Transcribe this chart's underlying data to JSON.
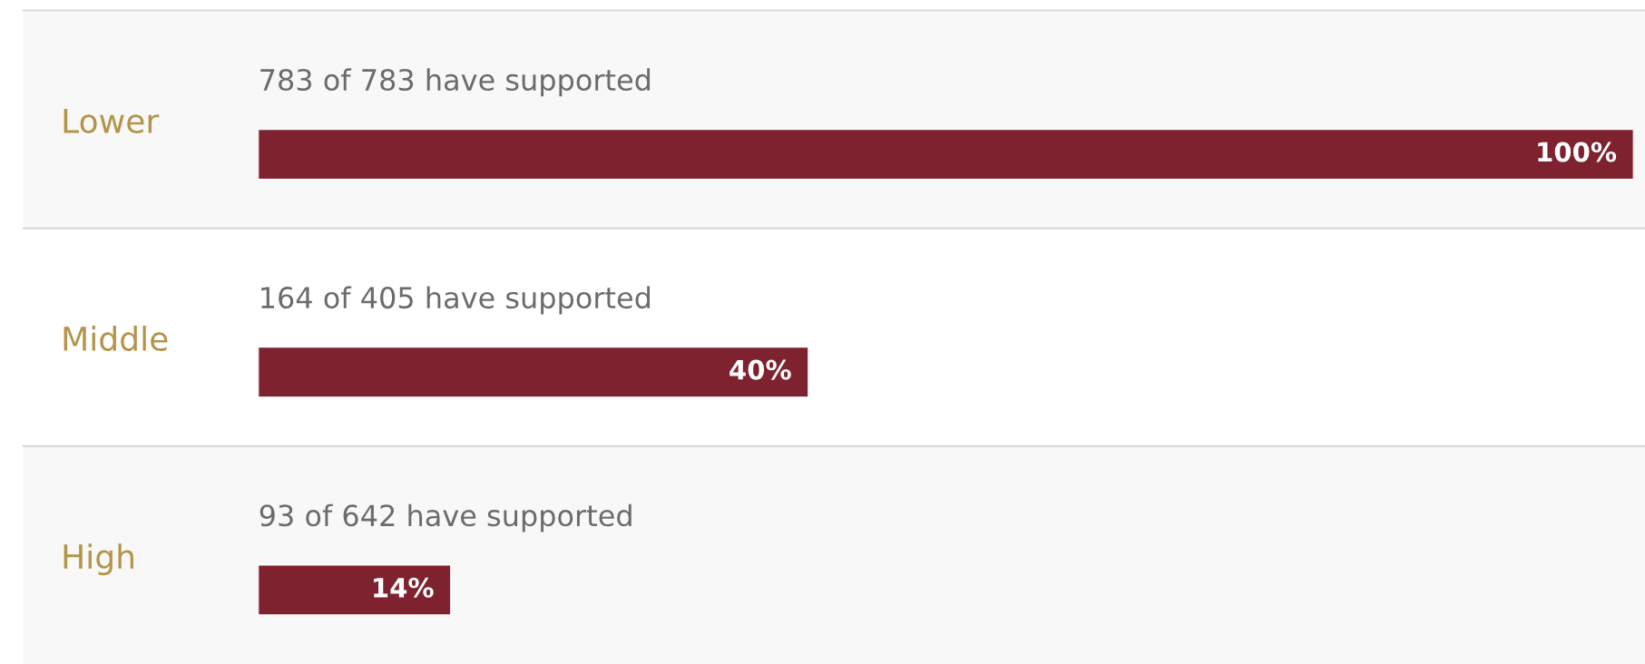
{
  "chart_data": {
    "type": "bar",
    "orientation": "horizontal",
    "categories": [
      "Lower",
      "Middle",
      "High"
    ],
    "values": [
      100,
      40,
      14
    ],
    "color": "#7f2230",
    "value_labels": [
      "100%",
      "40%",
      "14%"
    ],
    "annotations": [
      "783 of 783 have supported",
      "164 of 405 have supported",
      "93 of 642 have supported"
    ]
  }
}
